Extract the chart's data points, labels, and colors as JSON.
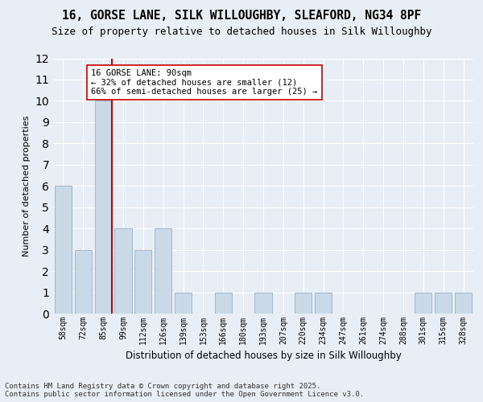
{
  "title_line1": "16, GORSE LANE, SILK WILLOUGHBY, SLEAFORD, NG34 8PF",
  "title_line2": "Size of property relative to detached houses in Silk Willoughby",
  "xlabel": "Distribution of detached houses by size in Silk Willoughby",
  "ylabel": "Number of detached properties",
  "categories": [
    "58sqm",
    "72sqm",
    "85sqm",
    "99sqm",
    "112sqm",
    "126sqm",
    "139sqm",
    "153sqm",
    "166sqm",
    "180sqm",
    "193sqm",
    "207sqm",
    "220sqm",
    "234sqm",
    "247sqm",
    "261sqm",
    "274sqm",
    "288sqm",
    "301sqm",
    "315sqm",
    "328sqm"
  ],
  "values": [
    6,
    3,
    10,
    4,
    3,
    4,
    1,
    0,
    1,
    0,
    1,
    0,
    1,
    1,
    0,
    0,
    0,
    0,
    1,
    1,
    1
  ],
  "bar_color": "#c9d9e8",
  "bar_edgecolor": "#a0b8cc",
  "highlight_index": 2,
  "highlight_line_color": "#cc0000",
  "ylim": [
    0,
    12
  ],
  "yticks": [
    0,
    1,
    2,
    3,
    4,
    5,
    6,
    7,
    8,
    9,
    10,
    11,
    12
  ],
  "annotation_text": "16 GORSE LANE: 90sqm\n← 32% of detached houses are smaller (12)\n66% of semi-detached houses are larger (25) →",
  "annotation_box_color": "#ffffff",
  "annotation_box_edgecolor": "#cc0000",
  "background_color": "#e8eef5",
  "grid_color": "#ffffff",
  "footer_text": "Contains HM Land Registry data © Crown copyright and database right 2025.\nContains public sector information licensed under the Open Government Licence v3.0.",
  "title_fontsize": 10.5,
  "subtitle_fontsize": 9,
  "annotation_fontsize": 7.5,
  "footer_fontsize": 6.5,
  "ylabel_fontsize": 8,
  "xlabel_fontsize": 8.5
}
